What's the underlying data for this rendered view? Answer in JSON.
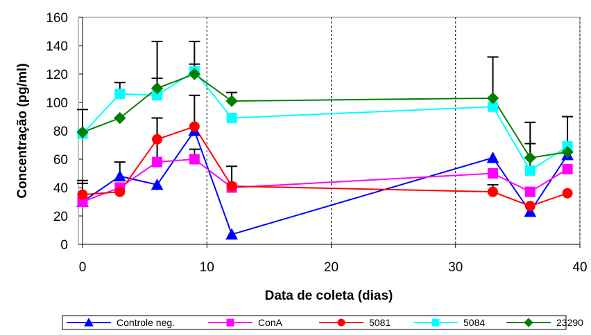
{
  "chart_data": {
    "type": "line",
    "title": "",
    "xlabel": "Data de coleta (dias)",
    "ylabel": "Concentração (pg/ml)",
    "xlim": [
      0,
      40
    ],
    "ylim": [
      0,
      160
    ],
    "xticks": [
      0,
      10,
      20,
      30,
      40
    ],
    "yticks": [
      0,
      20,
      40,
      60,
      80,
      100,
      120,
      140,
      160
    ],
    "grid": "vertical dashed",
    "legend_position": "bottom",
    "series": [
      {
        "name": "Controle neg.",
        "color": "#0000ff",
        "marker": "triangle",
        "x": [
          0,
          3,
          6,
          9,
          12,
          33,
          36,
          39
        ],
        "y": [
          30,
          48,
          42,
          80,
          7,
          61,
          23,
          63
        ],
        "err": [
          13,
          10,
          0,
          0,
          0,
          0,
          0,
          0
        ]
      },
      {
        "name": "ConA",
        "color": "#ff00ff",
        "marker": "square",
        "x": [
          0,
          3,
          6,
          9,
          12,
          33,
          36,
          39
        ],
        "y": [
          30,
          40,
          58,
          60,
          40,
          50,
          37,
          53
        ],
        "err": [
          0,
          0,
          31,
          7,
          0,
          0,
          0,
          0
        ]
      },
      {
        "name": "5081",
        "color": "#ff0000",
        "marker": "circle",
        "x": [
          0,
          3,
          6,
          9,
          12,
          33,
          36,
          39
        ],
        "y": [
          35,
          37,
          74,
          83,
          41,
          37,
          27,
          36
        ],
        "err": [
          10,
          0,
          15,
          22,
          14,
          5,
          0,
          0
        ]
      },
      {
        "name": "5084",
        "color": "#00ffff",
        "marker": "square",
        "x": [
          0,
          3,
          6,
          9,
          12,
          33,
          36,
          39
        ],
        "y": [
          78,
          106,
          105,
          122,
          89,
          97,
          52,
          69
        ],
        "err": [
          0,
          8,
          12,
          5,
          0,
          0,
          19,
          21
        ]
      },
      {
        "name": "23290",
        "color": "#008000",
        "marker": "diamond",
        "x": [
          0,
          3,
          6,
          9,
          12,
          33,
          36,
          39
        ],
        "y": [
          79,
          89,
          110,
          120,
          101,
          103,
          61,
          65
        ],
        "err": [
          16,
          0,
          33,
          23,
          6,
          29,
          25,
          0
        ]
      }
    ]
  }
}
